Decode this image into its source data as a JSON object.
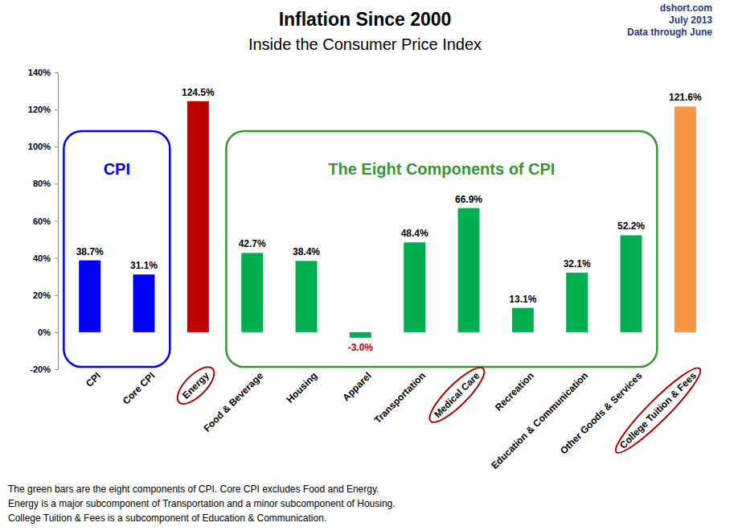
{
  "chart_data": {
    "type": "bar",
    "title": "Inflation Since 2000",
    "subtitle": "Inside the Consumer Price Index",
    "source": [
      "dshort.com",
      "July 2013",
      "Data through June"
    ],
    "categories": [
      "CPI",
      "Core CPI",
      "Energy",
      "Food & Beverage",
      "Housing",
      "Apparel",
      "Transportation",
      "Medical Care",
      "Recreation",
      "Education & Communication",
      "Other Goods & Services",
      "College Tuition & Fees"
    ],
    "values": [
      38.7,
      31.1,
      124.5,
      42.7,
      38.4,
      -3.0,
      48.4,
      66.9,
      13.1,
      32.1,
      52.2,
      121.6
    ],
    "value_labels": [
      "38.7%",
      "31.1%",
      "124.5%",
      "42.7%",
      "38.4%",
      "-3.0%",
      "48.4%",
      "66.9%",
      "13.1%",
      "32.1%",
      "52.2%",
      "121.6%"
    ],
    "colors": [
      "#0000ff",
      "#0000ff",
      "#c00000",
      "#00b050",
      "#00b050",
      "#00b050",
      "#00b050",
      "#00b050",
      "#00b050",
      "#00b050",
      "#00b050",
      "#f79646"
    ],
    "data_labels": true,
    "grid": false,
    "ylim": [
      -20,
      140
    ],
    "yticks": [
      {
        "value": -20,
        "label": "-20%"
      },
      {
        "value": 0,
        "label": "0%"
      },
      {
        "value": 20,
        "label": "20%"
      },
      {
        "value": 40,
        "label": "40%"
      },
      {
        "value": 60,
        "label": "60%"
      },
      {
        "value": 80,
        "label": "80%"
      },
      {
        "value": 100,
        "label": "100%"
      },
      {
        "value": 120,
        "label": "120%"
      },
      {
        "value": 140,
        "label": "140%"
      }
    ],
    "annotations": [
      {
        "text": "CPI",
        "color": "#0000ff",
        "categories": [
          "CPI",
          "Core CPI"
        ]
      },
      {
        "text": "The Eight Components of CPI",
        "color": "#339933",
        "categories": [
          "Food & Beverage",
          "Housing",
          "Apparel",
          "Transportation",
          "Medical Care",
          "Recreation",
          "Education & Communication",
          "Other Goods & Services"
        ]
      }
    ],
    "footnotes": [
      "The green bars are the eight components of CPI. Core CPI excludes Food and Energy.",
      "Energy is a major subcomponent of Transportation and a minor subcomponent of Housing.",
      "College Tuition & Fees is a subcomponent of Education & Communication."
    ]
  }
}
